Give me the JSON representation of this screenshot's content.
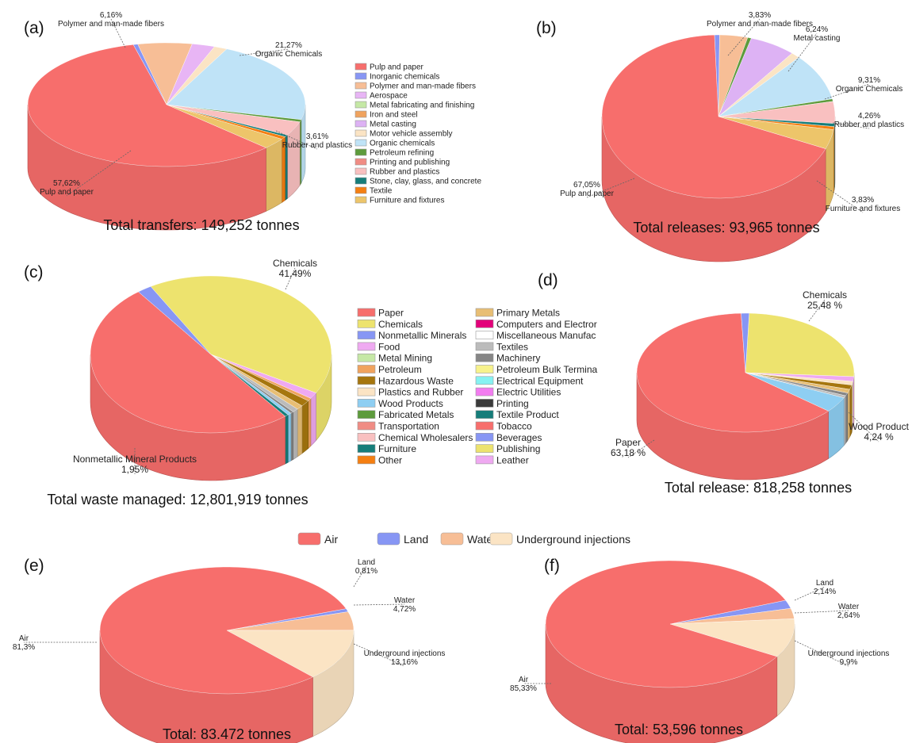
{
  "chart_data": [
    {
      "id": "a",
      "type": "pie",
      "panel_label": "(a)",
      "total_label": "Total transfers: 149,252 tonnes",
      "legend_placement": "right",
      "legend": [
        "Pulp and paper",
        "Inorganic chemicals",
        "Polymer and man-made fibers",
        "Aerospace",
        "Metal fabricating and finishing",
        "Iron and steel",
        "Metal casting",
        "Motor vehicle assembly",
        "Organic chemicals",
        "Petroleum refining",
        "Printing and publishing",
        "Rubber and plastics",
        "Stone, clay, glass, and concrete",
        "Textile",
        "Furniture and fixtures"
      ],
      "slices": [
        {
          "name": "Polymer and man-made fibers",
          "value": 6.16,
          "color": "#F7BE96",
          "label": [
            "6,16%",
            "Polymer and man-made fibers"
          ]
        },
        {
          "name": "Aerospace",
          "value": 2.6,
          "color": "#E8B5F5"
        },
        {
          "name": "Motor vehicle assembly",
          "value": 1.5,
          "color": "#FBE4C4"
        },
        {
          "name": "Organic chemicals",
          "value": 21.27,
          "color": "#BFE3F7",
          "label": [
            "21,27%",
            "Organic Chemicals"
          ]
        },
        {
          "name": "Metal fabricating and finishing",
          "value": 0.6,
          "color": "#5D9B3C"
        },
        {
          "name": "Rubber and plastics",
          "value": 3.61,
          "color": "#F9C0C0",
          "label": [
            "3,61%",
            "Rubber and plastics"
          ]
        },
        {
          "name": "Stone, clay, glass, and concrete",
          "value": 0.5,
          "color": "#167D7A"
        },
        {
          "name": "Textile",
          "value": 0.7,
          "color": "#F57F11"
        },
        {
          "name": "Furniture and fixtures",
          "value": 2.8,
          "color": "#EDC56A"
        },
        {
          "name": "Pulp and paper",
          "value": 57.62,
          "color": "#F76E6C",
          "label": [
            "57,62%",
            "Pulp and paper"
          ]
        },
        {
          "name": "Inorganic chemicals",
          "value": 0.5,
          "color": "#8796F4"
        }
      ]
    },
    {
      "id": "b",
      "type": "pie",
      "panel_label": "(b)",
      "total_label": "Total releases: 93,965 tonnes",
      "slices": [
        {
          "name": "Inorganic chemicals",
          "value": 0.7,
          "color": "#8796F4"
        },
        {
          "name": "Polymer and man-made fibers",
          "value": 3.83,
          "color": "#F7BE96",
          "label": [
            "3,83%",
            "Polymer and man-made fibers"
          ]
        },
        {
          "name": "Metal fabricating and finishing",
          "value": 0.5,
          "color": "#5D9B3C"
        },
        {
          "name": "Metal casting",
          "value": 6.24,
          "color": "#DDB2F4",
          "label": [
            "6,24%",
            "Metal casting"
          ]
        },
        {
          "name": "Motor vehicle assembly",
          "value": 1.2,
          "color": "#FBE4C4"
        },
        {
          "name": "Organic chemicals",
          "value": 9.31,
          "color": "#BFE3F7",
          "label": [
            "9,31%",
            "Organic Chemicals"
          ]
        },
        {
          "name": "Petroleum refining",
          "value": 0.5,
          "color": "#5D9B3C"
        },
        {
          "name": "Rubber and plastics",
          "value": 4.26,
          "color": "#F9C0C0",
          "label": [
            "4,26%",
            "Rubber and plastics"
          ]
        },
        {
          "name": "Stone, clay, glass, and concrete",
          "value": 0.6,
          "color": "#167D7A"
        },
        {
          "name": "Textile",
          "value": 0.6,
          "color": "#F57F11"
        },
        {
          "name": "Furniture and fixtures",
          "value": 3.83,
          "color": "#EDC56A",
          "label": [
            "3,83%",
            "Furniture and fixtures"
          ]
        },
        {
          "name": "Pulp and paper",
          "value": 67.05,
          "color": "#F76E6C",
          "label": [
            "67,05%",
            "Pulp and paper"
          ]
        }
      ]
    },
    {
      "id": "c",
      "type": "pie",
      "panel_label": "(c)",
      "total_label": "Total waste managed: 12,801,919 tonnes",
      "legend_placement": "right",
      "legend": [
        "Paper",
        "Chemicals",
        "Nonmetallic Minerals",
        "Food",
        "Metal Mining",
        "Petroleum",
        "Hazardous Waste",
        "Plastics and Rubber",
        "Wood Products",
        "Fabricated Metals",
        "Transportation",
        "Chemical Wholesalers",
        "Furniture",
        "Other",
        "Primary Metals",
        "Computers and Electror",
        "Miscellaneous Manufac",
        "Textiles",
        "Machinery",
        "Petroleum Bulk Termina",
        "Electrical Equipment",
        "Electric Utilities",
        "Printing",
        "Textile Product",
        "Tobacco",
        "Beverages",
        "Publishing",
        "Leather"
      ],
      "slices": [
        {
          "name": "Chemicals",
          "value": 41.49,
          "color": "#EDE36E",
          "label": [
            "Chemicals",
            "41,49%"
          ]
        },
        {
          "name": "Food",
          "value": 1.3,
          "color": "#EFA9F1"
        },
        {
          "name": "Petroleum",
          "value": 0.6,
          "color": "#F0A35E"
        },
        {
          "name": "Hazardous Waste",
          "value": 1.3,
          "color": "#A6760E"
        },
        {
          "name": "Primary Metals",
          "value": 0.9,
          "color": "#E8BE74"
        },
        {
          "name": "Textiles",
          "value": 0.8,
          "color": "#BBBBBB"
        },
        {
          "name": "Machinery",
          "value": 0.4,
          "color": "#868686"
        },
        {
          "name": "Wood Products",
          "value": 0.5,
          "color": "#8ECEF2"
        },
        {
          "name": "Textile Product",
          "value": 0.48,
          "color": "#167D7A"
        },
        {
          "name": "Paper",
          "value": 50.28,
          "color": "#F76E6C",
          "label": [
            "Paper",
            "50.28%"
          ]
        },
        {
          "name": "Nonmetallic Minerals",
          "value": 1.95,
          "color": "#8796F4",
          "label": [
            "Nonmetallic Mineral Products",
            "1,95%"
          ]
        }
      ]
    },
    {
      "id": "d",
      "type": "pie",
      "panel_label": "(d)",
      "total_label": "Total release: 818,258 tonnes",
      "slices": [
        {
          "name": "Chemicals",
          "value": 25.48,
          "color": "#EDE36E",
          "label": [
            "Chemicals",
            "25,48 %"
          ]
        },
        {
          "name": "Food",
          "value": 1.3,
          "color": "#EFA9F1"
        },
        {
          "name": "Plastics and Rubber",
          "value": 1.0,
          "color": "#FBE4C4"
        },
        {
          "name": "Hazardous Waste",
          "value": 1.2,
          "color": "#A6760E"
        },
        {
          "name": "Primary Metals",
          "value": 1.0,
          "color": "#E8BE74"
        },
        {
          "name": "Machinery",
          "value": 0.8,
          "color": "#868686"
        },
        {
          "name": "Textiles",
          "value": 0.6,
          "color": "#BBBBBB"
        },
        {
          "name": "Wood Products",
          "value": 4.24,
          "color": "#8ECEF2",
          "label": [
            "Wood Product",
            "4,24 %"
          ]
        },
        {
          "name": "Paper",
          "value": 63.18,
          "color": "#F76E6C",
          "label": [
            "Paper",
            "63,18 %"
          ]
        },
        {
          "name": "Nonmetallic Minerals",
          "value": 1.2,
          "color": "#8796F4"
        }
      ]
    },
    {
      "id": "e",
      "type": "pie",
      "panel_label": "(e)",
      "total_label": "Total: 83.472 tonnes",
      "slices": [
        {
          "name": "Land",
          "value": 0.81,
          "color": "#8796F4",
          "label": [
            "Land",
            "0,81%"
          ]
        },
        {
          "name": "Water",
          "value": 4.72,
          "color": "#F7BE96",
          "label": [
            "Water",
            "4,72%"
          ]
        },
        {
          "name": "Underground injections",
          "value": 13.16,
          "color": "#FBE4C4",
          "label": [
            "Underground injections",
            "13,16%"
          ]
        },
        {
          "name": "Air",
          "value": 81.3,
          "color": "#F76E6C",
          "label": [
            "Air",
            "81,3%"
          ]
        }
      ]
    },
    {
      "id": "f",
      "type": "pie",
      "panel_label": "(f)",
      "total_label": "Total: 53,596 tonnes",
      "slices": [
        {
          "name": "Land",
          "value": 2.14,
          "color": "#8796F4",
          "label": [
            "Land",
            "2,14%"
          ]
        },
        {
          "name": "Water",
          "value": 2.64,
          "color": "#F7BE96",
          "label": [
            "Water",
            "2,64%"
          ]
        },
        {
          "name": "Underground injections",
          "value": 9.9,
          "color": "#FBE4C4",
          "label": [
            "Underground injections",
            "9,9%"
          ]
        },
        {
          "name": "Air",
          "value": 85.33,
          "color": "#F76E6C",
          "label": [
            "Air",
            "85,33%"
          ]
        }
      ]
    }
  ],
  "shared_legend": {
    "placement": "top",
    "items": [
      {
        "name": "Air",
        "color": "#F76E6C"
      },
      {
        "name": "Land",
        "color": "#8796F4"
      },
      {
        "name": "Water",
        "color": "#F7BE96"
      },
      {
        "name": "Underground injections",
        "color": "#FBE4C4"
      }
    ]
  },
  "legend_colors_a": [
    "#F76E6C",
    "#8796F4",
    "#F7BE96",
    "#E8B5F5",
    "#C5E8A5",
    "#F0A35E",
    "#DDB2F4",
    "#FBE4C4",
    "#BFE3F7",
    "#5D9B3C",
    "#F08C84",
    "#F9C0C0",
    "#167D7A",
    "#F57F11",
    "#EDC56A"
  ],
  "legend_colors_c": [
    "#F76E6C",
    "#EDE36E",
    "#8796F4",
    "#EFA9F1",
    "#C5E8A5",
    "#F0A35E",
    "#A6760E",
    "#FBE4C4",
    "#8ECEF2",
    "#5D9B3C",
    "#F08C84",
    "#F9C0C0",
    "#167D7A",
    "#F57F11",
    "#E8BE74",
    "#E3007A",
    "#FFFFFF",
    "#BBBBBB",
    "#868686",
    "#F7F28C",
    "#86F2F2",
    "#F27CF0",
    "#3B3B3B",
    "#167D7A",
    "#F76E6C",
    "#8796F4",
    "#EDE36E",
    "#EFA9F1"
  ]
}
